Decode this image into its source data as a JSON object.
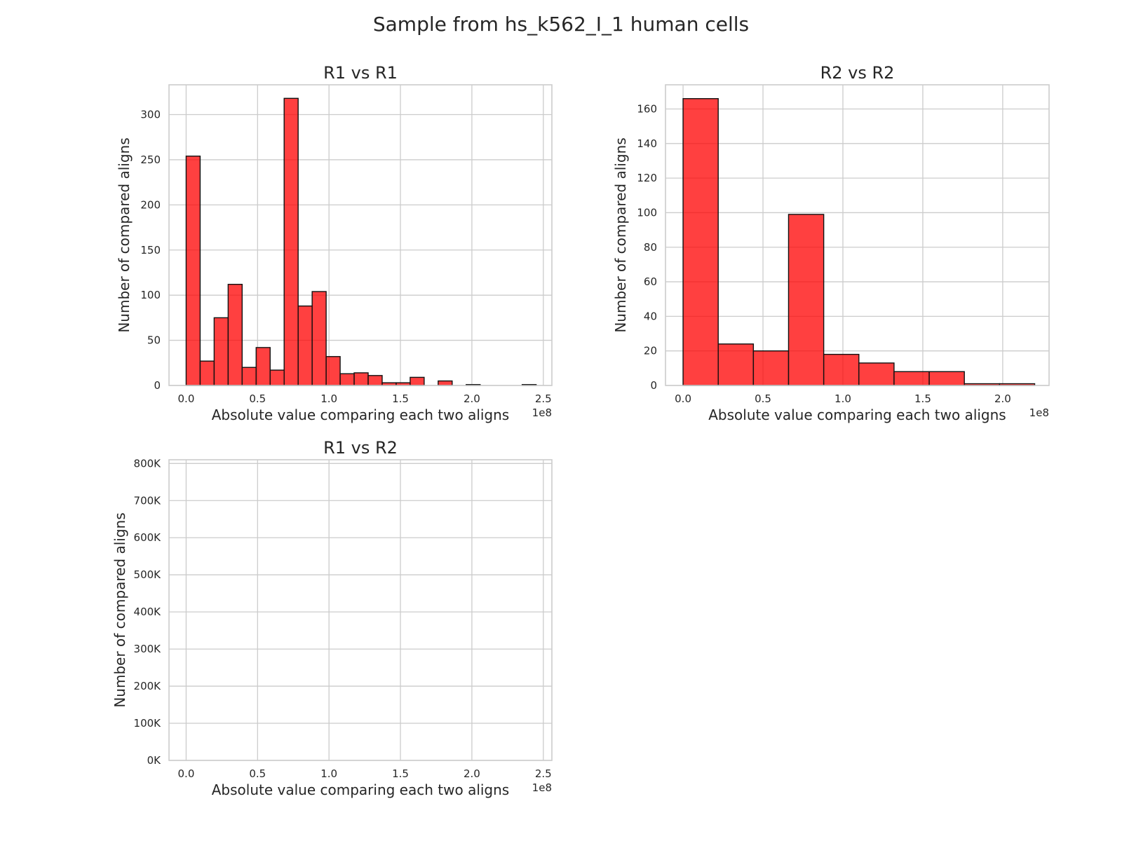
{
  "figure": {
    "suptitle": "Sample from hs_k562_I_1 human cells"
  },
  "colors": {
    "bar_fill": "#ff0000",
    "bar_edge": "#111111",
    "grid": "#cccccc",
    "spine": "#cccccc",
    "text": "#262626"
  },
  "chart_data": [
    {
      "type": "bar",
      "subtype": "histogram",
      "title": "R1 vs R1",
      "xlabel": "Absolute value comparing each two aligns",
      "ylabel": "Number of compared aligns",
      "x_offset_text": "1e8",
      "xlim": [
        -0.12,
        2.56
      ],
      "ylim": [
        0,
        333
      ],
      "xticks": [
        0.0,
        0.5,
        1.0,
        1.5,
        2.0,
        2.5
      ],
      "xtick_labels": [
        "0.0",
        "0.5",
        "1.0",
        "1.5",
        "2.0",
        "2.5"
      ],
      "yticks": [
        0,
        50,
        100,
        150,
        200,
        250,
        300
      ],
      "ytick_labels": [
        "0",
        "50",
        "100",
        "150",
        "200",
        "250",
        "300"
      ],
      "grid": true,
      "bin_edges": [
        0.0,
        0.098,
        0.196,
        0.294,
        0.392,
        0.49,
        0.588,
        0.686,
        0.784,
        0.882,
        0.98,
        1.078,
        1.176,
        1.274,
        1.372,
        1.47,
        1.568,
        1.666,
        1.764,
        1.862,
        1.96,
        2.058,
        2.156,
        2.254,
        2.352,
        2.45
      ],
      "values": [
        254,
        27,
        75,
        112,
        20,
        42,
        17,
        318,
        88,
        104,
        32,
        13,
        14,
        11,
        3,
        3,
        9,
        0,
        5,
        0,
        1,
        0,
        0,
        0,
        1
      ]
    },
    {
      "type": "bar",
      "subtype": "histogram",
      "title": "R2 vs R2",
      "xlabel": "Absolute value comparing each two aligns",
      "ylabel": "Number of compared aligns",
      "x_offset_text": "1e8",
      "xlim": [
        -0.11,
        2.29
      ],
      "ylim": [
        0,
        174
      ],
      "xticks": [
        0.0,
        0.5,
        1.0,
        1.5,
        2.0
      ],
      "xtick_labels": [
        "0.0",
        "0.5",
        "1.0",
        "1.5",
        "2.0"
      ],
      "yticks": [
        0,
        20,
        40,
        60,
        80,
        100,
        120,
        140,
        160
      ],
      "ytick_labels": [
        "0",
        "20",
        "40",
        "60",
        "80",
        "100",
        "120",
        "140",
        "160"
      ],
      "grid": true,
      "bin_edges": [
        0.0,
        0.22,
        0.44,
        0.66,
        0.88,
        1.1,
        1.32,
        1.54,
        1.76,
        1.98,
        2.2
      ],
      "values": [
        166,
        24,
        20,
        99,
        18,
        13,
        8,
        8,
        1,
        1
      ]
    },
    {
      "type": "bar",
      "subtype": "histogram",
      "title": "R1 vs R2",
      "xlabel": "Absolute value comparing each two aligns",
      "ylabel": "Number of compared aligns",
      "x_offset_text": "1e8",
      "xlim": [
        -0.12,
        2.56
      ],
      "ylim": [
        0,
        810000
      ],
      "xticks": [
        0.0,
        0.5,
        1.0,
        1.5,
        2.0,
        2.5
      ],
      "xtick_labels": [
        "0.0",
        "0.5",
        "1.0",
        "1.5",
        "2.0",
        "2.5"
      ],
      "yticks": [
        0,
        100000,
        200000,
        300000,
        400000,
        500000,
        600000,
        700000,
        800000
      ],
      "ytick_labels": [
        "0K",
        "100K",
        "200K",
        "300K",
        "400K",
        "500K",
        "600K",
        "700K",
        "800K"
      ],
      "grid": true,
      "bin_edges": [],
      "values": []
    }
  ]
}
